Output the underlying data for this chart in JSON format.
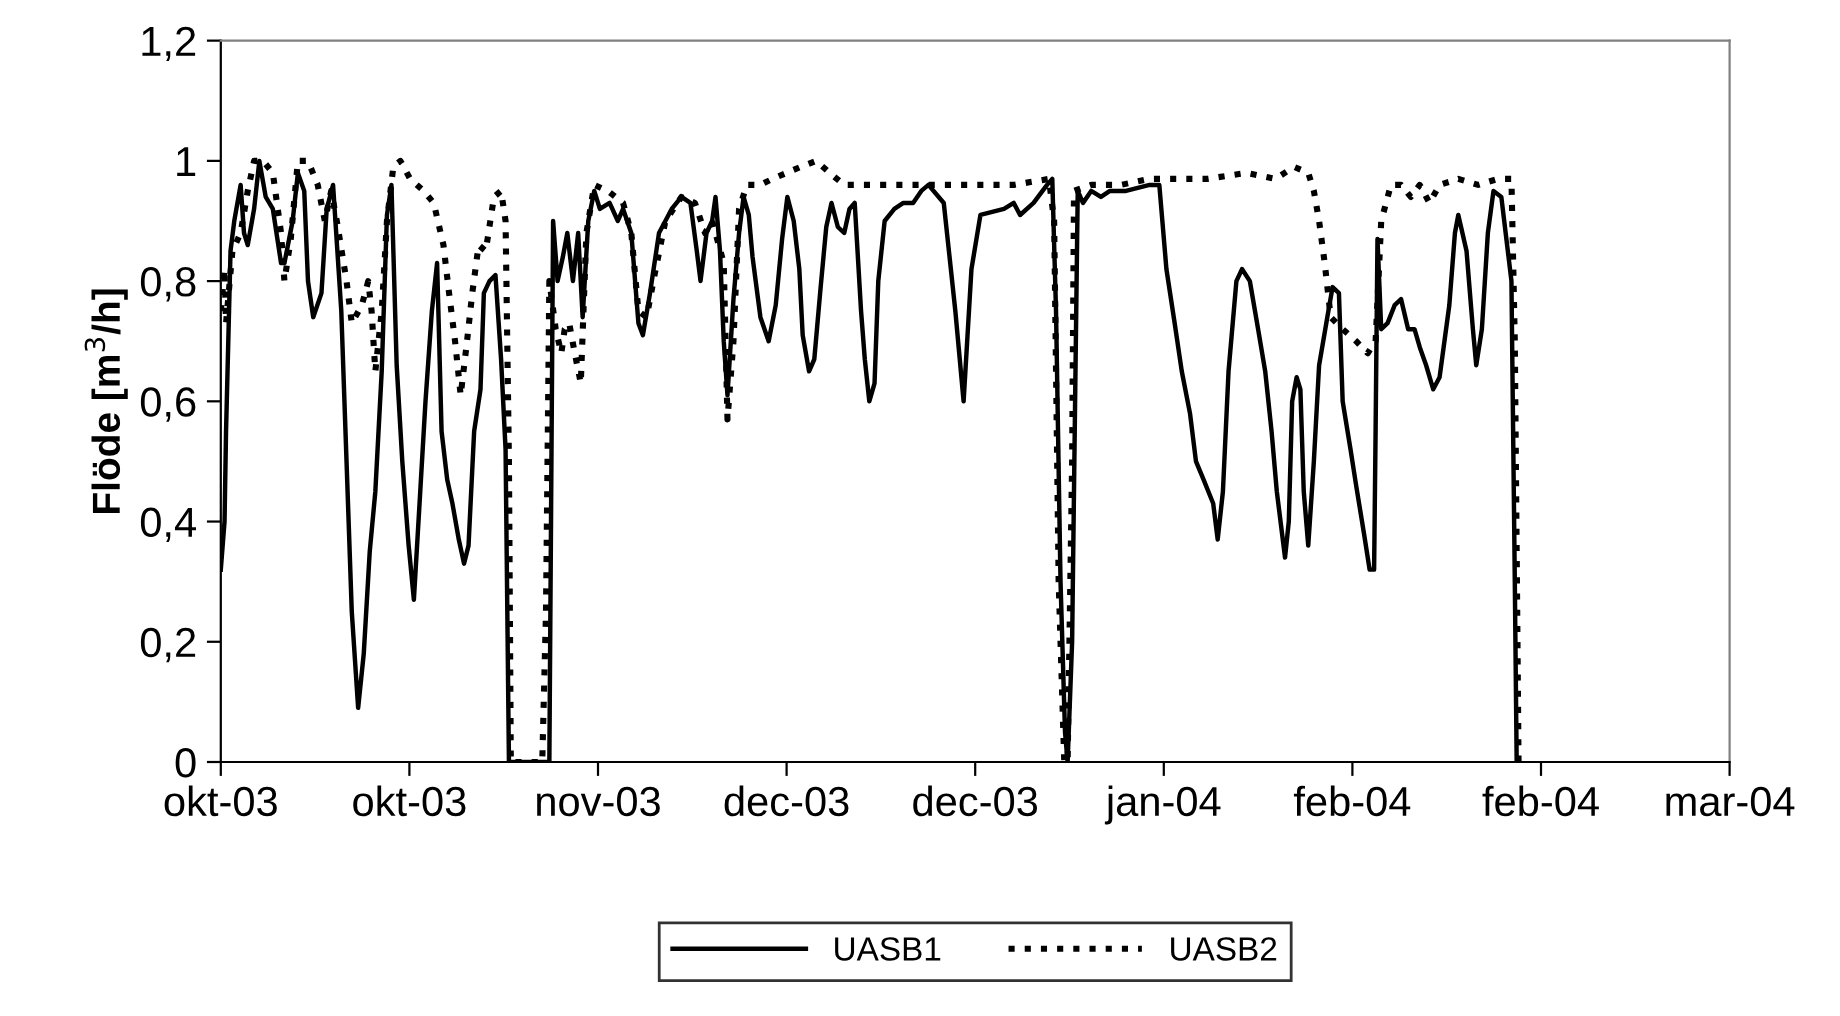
{
  "chart_data": {
    "type": "line",
    "ylabel": "Flöde [m$^{3}$/h]",
    "xlim": [
      "2003-10-01",
      "2004-03-17"
    ],
    "xticks": [
      {
        "value": "2003-10-01",
        "label": "okt-03"
      },
      {
        "value": "2003-10-22",
        "label": "okt-03"
      },
      {
        "value": "2003-11-12",
        "label": "nov-03"
      },
      {
        "value": "2003-12-03",
        "label": "dec-03"
      },
      {
        "value": "2003-12-24",
        "label": "dec-03"
      },
      {
        "value": "2004-01-14",
        "label": "jan-04"
      },
      {
        "value": "2004-02-04",
        "label": "feb-04"
      },
      {
        "value": "2004-02-25",
        "label": "feb-04"
      },
      {
        "value": "2004-03-17",
        "label": "mar-04"
      }
    ],
    "ylim": [
      0,
      1.2
    ],
    "yticks": [
      0,
      {
        "value": 0.2,
        "label": "0,2"
      },
      {
        "value": 0.4,
        "label": "0,4"
      },
      {
        "value": 0.6,
        "label": "0,6"
      },
      {
        "value": 0.8,
        "label": "0,8"
      },
      1,
      {
        "value": 1.2,
        "label": "1,2"
      }
    ],
    "grid": false,
    "legend": "bottom",
    "marker": "none",
    "series": [
      {
        "name": "UASB1",
        "color": "#000000",
        "line_style": "solid",
        "x": [
          "2003-10-01T00:00",
          "2003-10-01T10:00",
          "2003-10-01T14:00",
          "2003-10-02T02:00",
          "2003-10-02T12:00",
          "2003-10-03T05:00",
          "2003-10-03T14:00",
          "2003-10-04T00:00",
          "2003-10-04T17:00",
          "2003-10-05T07:00",
          "2003-10-06T00:00",
          "2003-10-06T19:00",
          "2003-10-07T17:00",
          "2003-10-08T02:00",
          "2003-10-09T00:00",
          "2003-10-09T14:00",
          "2003-10-10T07:00",
          "2003-10-10T17:00",
          "2003-10-11T07:00",
          "2003-10-12T05:00",
          "2003-10-12T19:00",
          "2003-10-13T12:00",
          "2003-10-14T10:00",
          "2003-10-15T00:00",
          "2003-10-15T14:00",
          "2003-10-16T07:00",
          "2003-10-16T22:00",
          "2003-10-17T14:00",
          "2003-10-18T05:00",
          "2003-10-18T22:00",
          "2003-10-19T12:00",
          "2003-10-20T00:00",
          "2003-10-20T14:00",
          "2003-10-21T05:00",
          "2003-10-21T22:00",
          "2003-10-22T12:00",
          "2003-10-23T05:00",
          "2003-10-23T19:00",
          "2003-10-24T12:00",
          "2003-10-25T02:00",
          "2003-10-25T14:00",
          "2003-10-26T05:00",
          "2003-10-26T19:00",
          "2003-10-27T12:00",
          "2003-10-28T02:00",
          "2003-10-28T14:00",
          "2003-10-29T05:00",
          "2003-10-29T22:00",
          "2003-10-30T07:00",
          "2003-10-30T22:00",
          "2003-10-31T14:00",
          "2003-11-01T05:00",
          "2003-11-01T17:00",
          "2003-11-02T02:00",
          "2003-11-04T00:00",
          "2003-11-06T14:00",
          "2003-11-07T00:00",
          "2003-11-07T12:00",
          "2003-11-08T02:00",
          "2003-11-08T14:00",
          "2003-11-09T05:00",
          "2003-11-09T19:00",
          "2003-11-10T07:00",
          "2003-11-10T22:00",
          "2003-11-11T14:00",
          "2003-11-12T05:00",
          "2003-11-13T07:00",
          "2003-11-14T05:00",
          "2003-11-14T19:00",
          "2003-11-15T17:00",
          "2003-11-16T12:00",
          "2003-11-17T00:00",
          "2003-11-17T19:00",
          "2003-11-18T19:00",
          "2003-11-20T05:00",
          "2003-11-21T07:00",
          "2003-11-22T07:00",
          "2003-11-23T00:00",
          "2003-11-23T10:00",
          "2003-11-24T02:00",
          "2003-11-24T17:00",
          "2003-11-25T02:00",
          "2003-11-25T14:00",
          "2003-11-26T00:00",
          "2003-11-26T10:00",
          "2003-11-27T02:00",
          "2003-11-27T17:00",
          "2003-11-28T05:00",
          "2003-11-28T19:00",
          "2003-11-29T05:00",
          "2003-11-30T02:00",
          "2003-12-01T00:00",
          "2003-12-01T19:00",
          "2003-12-02T12:00",
          "2003-12-03T02:00",
          "2003-12-03T19:00",
          "2003-12-04T10:00",
          "2003-12-04T19:00",
          "2003-12-05T12:00",
          "2003-12-06T02:00",
          "2003-12-06T19:00",
          "2003-12-07T10:00",
          "2003-12-08T00:00",
          "2003-12-08T17:00",
          "2003-12-09T10:00",
          "2003-12-10T00:00",
          "2003-12-10T14:00",
          "2003-12-11T07:00",
          "2003-12-11T17:00",
          "2003-12-12T05:00",
          "2003-12-12T19:00",
          "2003-12-13T05:00",
          "2003-12-13T22:00",
          "2003-12-15T00:00",
          "2003-12-16T00:00",
          "2003-12-17T02:00",
          "2003-12-18T00:00",
          "2003-12-18T19:00",
          "2003-12-20T12:00",
          "2003-12-21T19:00",
          "2003-12-22T17:00",
          "2003-12-23T14:00",
          "2003-12-24T14:00",
          "2003-12-27T05:00",
          "2003-12-28T07:00",
          "2003-12-29T00:00",
          "2003-12-30T12:00",
          "2004-01-01T00:00",
          "2004-01-01T14:00",
          "2004-01-02T00:00",
          "2004-01-02T12:00",
          "2004-01-03T00:00",
          "2004-01-03T07:00",
          "2004-01-03T19:00",
          "2004-01-04T07:00",
          "2004-01-04T10:00",
          "2004-01-05T00:00",
          "2004-01-05T22:00",
          "2004-01-07T00:00",
          "2004-01-08T00:00",
          "2004-01-09T19:00",
          "2004-01-12T10:00",
          "2004-01-13T12:00",
          "2004-01-14T07:00",
          "2004-01-15T05:00",
          "2004-01-16T00:00",
          "2004-01-16T22:00",
          "2004-01-17T14:00",
          "2004-01-18T10:00",
          "2004-01-19T12:00",
          "2004-01-20T00:00",
          "2004-01-20T14:00",
          "2004-01-21T05:00",
          "2004-01-22T02:00",
          "2004-01-22T17:00",
          "2004-01-23T14:00",
          "2004-01-24T12:00",
          "2004-01-25T07:00",
          "2004-01-26T00:00",
          "2004-01-26T14:00",
          "2004-01-27T12:00",
          "2004-01-27T22:00",
          "2004-01-28T07:00",
          "2004-01-28T19:00",
          "2004-01-29T05:00",
          "2004-01-29T14:00",
          "2004-01-30T02:00",
          "2004-01-30T17:00",
          "2004-01-31T07:00",
          "2004-02-01T05:00",
          "2004-02-01T19:00",
          "2004-02-02T12:00",
          "2004-02-02T22:00",
          "2004-02-03T19:00",
          "2004-02-04T10:00",
          "2004-02-05T07:00",
          "2004-02-05T22:00",
          "2004-02-06T10:00",
          "2004-02-06T14:00",
          "2004-02-06T19:00",
          "2004-02-07T05:00",
          "2004-02-07T22:00",
          "2004-02-08T17:00",
          "2004-02-09T10:00",
          "2004-02-10T05:00",
          "2004-02-10T22:00",
          "2004-02-11T12:00",
          "2004-02-12T05:00",
          "2004-02-13T00:00",
          "2004-02-13T17:00",
          "2004-02-14T19:00",
          "2004-02-15T10:00",
          "2004-02-15T19:00",
          "2004-02-16T17:00",
          "2004-02-17T10:00",
          "2004-02-17T19:00",
          "2004-02-18T10:00",
          "2004-02-19T02:00",
          "2004-02-19T17:00",
          "2004-02-20T14:00",
          "2004-02-21T17:00",
          "2004-02-22T02:00",
          "2004-02-22T07:00"
        ],
        "values": [
          0.32,
          0.4,
          0.55,
          0.85,
          0.9,
          0.96,
          0.88,
          0.86,
          0.92,
          1.0,
          0.94,
          0.92,
          0.83,
          0.83,
          0.9,
          0.98,
          0.95,
          0.8,
          0.74,
          0.78,
          0.92,
          0.96,
          0.75,
          0.5,
          0.25,
          0.09,
          0.18,
          0.35,
          0.45,
          0.65,
          0.91,
          0.96,
          0.66,
          0.5,
          0.36,
          0.27,
          0.45,
          0.6,
          0.75,
          0.83,
          0.55,
          0.47,
          0.43,
          0.37,
          0.33,
          0.36,
          0.55,
          0.62,
          0.78,
          0.8,
          0.81,
          0.67,
          0.52,
          0,
          0,
          0,
          0.9,
          0.8,
          0.84,
          0.88,
          0.8,
          0.88,
          0.74,
          0.9,
          0.95,
          0.92,
          0.93,
          0.9,
          0.92,
          0.88,
          0.73,
          0.71,
          0.78,
          0.88,
          0.92,
          0.94,
          0.93,
          0.85,
          0.8,
          0.88,
          0.9,
          0.94,
          0.85,
          0.7,
          0.61,
          0.77,
          0.88,
          0.94,
          0.91,
          0.84,
          0.74,
          0.7,
          0.76,
          0.87,
          0.94,
          0.9,
          0.82,
          0.71,
          0.65,
          0.67,
          0.79,
          0.89,
          0.93,
          0.89,
          0.88,
          0.92,
          0.93,
          0.75,
          0.67,
          0.6,
          0.63,
          0.8,
          0.9,
          0.92,
          0.93,
          0.93,
          0.95,
          0.96,
          0.93,
          0.75,
          0.6,
          0.82,
          0.91,
          0.92,
          0.93,
          0.91,
          0.93,
          0.96,
          0.97,
          0.75,
          0.3,
          0.05,
          0,
          0.2,
          0.8,
          0.95,
          0.93,
          0.95,
          0.94,
          0.95,
          0.95,
          0.96,
          0.96,
          0.82,
          0.73,
          0.65,
          0.58,
          0.5,
          0.47,
          0.43,
          0.37,
          0.45,
          0.65,
          0.8,
          0.82,
          0.8,
          0.72,
          0.65,
          0.55,
          0.45,
          0.34,
          0.4,
          0.6,
          0.64,
          0.62,
          0.45,
          0.36,
          0.5,
          0.66,
          0.74,
          0.79,
          0.78,
          0.6,
          0.52,
          0.46,
          0.38,
          0.32,
          0.32,
          0.55,
          0.87,
          0.72,
          0.73,
          0.76,
          0.77,
          0.72,
          0.72,
          0.69,
          0.66,
          0.62,
          0.64,
          0.76,
          0.88,
          0.91,
          0.85,
          0.72,
          0.66,
          0.72,
          0.88,
          0.95,
          0.94,
          0.8,
          0.3,
          0
        ]
      },
      {
        "name": "UASB2",
        "color": "#000000",
        "line_style": "dotted",
        "x": [
          "2003-10-01T00:00",
          "2003-10-01T10:00",
          "2003-10-01T14:00",
          "2003-10-02T07:00",
          "2003-10-03T05:00",
          "2003-10-04T00:00",
          "2003-10-04T17:00",
          "2003-10-05T17:00",
          "2003-10-06T19:00",
          "2003-10-07T17:00",
          "2003-10-08T02:00",
          "2003-10-08T19:00",
          "2003-10-09T14:00",
          "2003-10-10T17:00",
          "2003-10-11T19:00",
          "2003-10-12T14:00",
          "2003-10-13T07:00",
          "2003-10-13T22:00",
          "2003-10-15T00:00",
          "2003-10-15T14:00",
          "2003-10-16T17:00",
          "2003-10-17T10:00",
          "2003-10-17T19:00",
          "2003-10-18T05:00",
          "2003-10-18T22:00",
          "2003-10-19T12:00",
          "2003-10-20T05:00",
          "2003-10-21T00:00",
          "2003-10-22T02:00",
          "2003-10-23T14:00",
          "2003-10-24T17:00",
          "2003-10-25T19:00",
          "2003-10-26T10:00",
          "2003-10-27T02:00",
          "2003-10-27T17:00",
          "2003-10-28T10:00",
          "2003-10-29T00:00",
          "2003-10-29T17:00",
          "2003-10-30T12:00",
          "2003-10-31T10:00",
          "2003-11-01T05:00",
          "2003-11-01T17:00",
          "2003-11-02T02:00",
          "2003-11-02T07:00",
          "2003-11-05T19:00",
          "2003-11-06T05:00",
          "2003-11-06T14:00",
          "2003-11-07T07:00",
          "2003-11-07T22:00",
          "2003-11-08T07:00",
          "2003-11-08T19:00",
          "2003-11-09T10:00",
          "2003-11-10T02:00",
          "2003-11-10T17:00",
          "2003-11-11T14:00",
          "2003-11-13T02:00",
          "2003-11-14T19:00",
          "2003-11-15T17:00",
          "2003-11-16T12:00",
          "2003-11-17T10:00",
          "2003-11-18T07:00",
          "2003-11-19T12:00",
          "2003-11-21T07:00",
          "2003-11-22T19:00",
          "2003-11-23T22:00",
          "2003-11-24T17:00",
          "2003-11-26T00:00",
          "2003-11-26T10:00",
          "2003-11-27T02:00",
          "2003-11-27T17:00",
          "2003-11-28T14:00",
          "2003-11-30T02:00",
          "2003-12-01T10:00",
          "2003-12-04T14:00",
          "2003-12-06T07:00",
          "2003-12-07T19:00",
          "2003-12-09T10:00",
          "2003-12-12T05:00",
          "2003-12-17T12:00",
          "2003-12-21T19:00",
          "2003-12-25T02:00",
          "2003-12-28T07:00",
          "2004-01-01T05:00",
          "2004-01-01T19:00",
          "2004-01-02T07:00",
          "2004-01-02T22:00",
          "2004-01-03T07:00",
          "2004-01-03T19:00",
          "2004-01-04T00:00",
          "2004-01-05T22:00",
          "2004-01-09T05:00",
          "2004-01-12T10:00",
          "2004-01-14T12:00",
          "2004-01-18T19:00",
          "2004-01-23T05:00",
          "2004-01-26T10:00",
          "2004-01-28T12:00",
          "2004-01-30T02:00",
          "2004-01-30T17:00",
          "2004-01-31T07:00",
          "2004-01-31T22:00",
          "2004-02-01T14:00",
          "2004-02-02T22:00",
          "2004-02-04T10:00",
          "2004-02-05T17:00",
          "2004-02-06T14:00",
          "2004-02-07T05:00",
          "2004-02-08T07:00",
          "2004-02-09T10:00",
          "2004-02-10T12:00",
          "2004-02-11T12:00",
          "2004-02-12T14:00",
          "2004-02-13T17:00",
          "2004-02-15T19:00",
          "2004-02-18T00:00",
          "2004-02-20T05:00",
          "2004-02-21T17:00",
          "2004-02-22T02:00",
          "2004-02-22T12:00"
        ],
        "values": [
          0.75,
          0.82,
          0.73,
          0.85,
          0.88,
          0.95,
          1.0,
          1.0,
          0.98,
          0.88,
          0.8,
          0.87,
          1.0,
          1.0,
          0.96,
          0.9,
          0.95,
          0.9,
          0.8,
          0.73,
          0.76,
          0.8,
          0.75,
          0.65,
          0.75,
          0.9,
          0.99,
          1.0,
          0.97,
          0.95,
          0.93,
          0.86,
          0.78,
          0.7,
          0.61,
          0.7,
          0.78,
          0.86,
          0.85,
          0.94,
          0.95,
          0.9,
          0.5,
          0,
          0,
          0.25,
          0.8,
          0.72,
          0.68,
          0.72,
          0.73,
          0.68,
          0.63,
          0.88,
          0.96,
          0.95,
          0.93,
          0.88,
          0.75,
          0.74,
          0.81,
          0.9,
          0.94,
          0.93,
          0.88,
          0.9,
          0.83,
          0.57,
          0.7,
          0.92,
          0.96,
          0.96,
          0.97,
          0.99,
          1.0,
          0.98,
          0.96,
          0.96,
          0.96,
          0.96,
          0.96,
          0.96,
          0.97,
          0.9,
          0.3,
          0,
          0,
          0.5,
          0.95,
          0.96,
          0.96,
          0.97,
          0.97,
          0.97,
          0.98,
          0.97,
          0.99,
          0.98,
          0.95,
          0.9,
          0.83,
          0.74,
          0.72,
          0.7,
          0.68,
          0.7,
          0.9,
          0.96,
          0.96,
          0.94,
          0.96,
          0.93,
          0.96,
          0.97,
          0.96,
          0.97,
          0.97,
          0.7,
          0
        ]
      }
    ]
  }
}
